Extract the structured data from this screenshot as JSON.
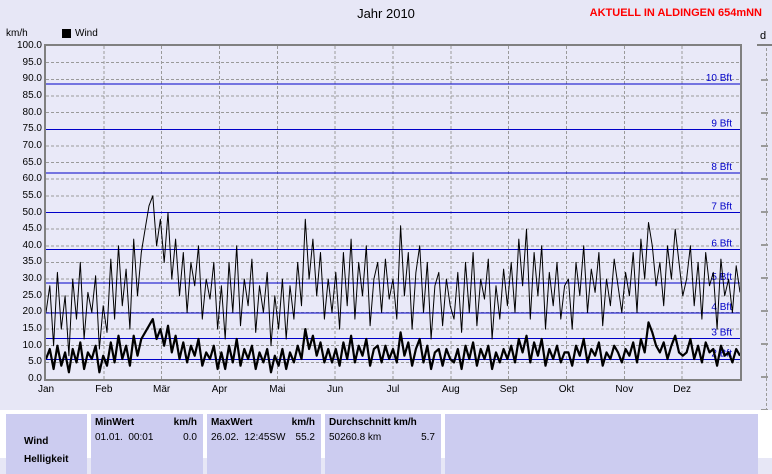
{
  "page": {
    "title": "Jahr 2010",
    "status_right": "AKTUELL IN ALDINGEN 654mNN",
    "status_color": "#ff0000",
    "y_axis_unit": "km/h",
    "legend": [
      {
        "label": "Wind",
        "color": "#000000"
      }
    ],
    "right_fragment_label": "d"
  },
  "chart_data": {
    "type": "line",
    "title": "Jahr 2010",
    "ylabel": "km/h",
    "ylim": [
      0,
      100
    ],
    "ytick_step": 5,
    "grid": true,
    "legend_position": "top-left",
    "x_categories": [
      "Jan",
      "Feb",
      "Mär",
      "Apr",
      "Mai",
      "Jun",
      "Jul",
      "Aug",
      "Sep",
      "Okt",
      "Nov",
      "Dez"
    ],
    "beaufort_lines": [
      {
        "label": "2 Bft",
        "value": 5.8
      },
      {
        "label": "3 Bft",
        "value": 12.2
      },
      {
        "label": "4 Bft",
        "value": 19.8
      },
      {
        "label": "5 Bft",
        "value": 28.8
      },
      {
        "label": "6 Bft",
        "value": 38.9
      },
      {
        "label": "7 Bft",
        "value": 50.0
      },
      {
        "label": "8 Bft",
        "value": 61.9
      },
      {
        "label": "9 Bft",
        "value": 74.9
      },
      {
        "label": "10 Bft",
        "value": 88.6
      }
    ],
    "series": [
      {
        "name": "wind-peak",
        "color": "#000000",
        "stroke_width": 1,
        "values": [
          20,
          28,
          10,
          32,
          15,
          25,
          7,
          30,
          18,
          35,
          12,
          26,
          20,
          31,
          9,
          22,
          14,
          36,
          18,
          40,
          22,
          33,
          15,
          42,
          25,
          38,
          45,
          52,
          55,
          40,
          48,
          35,
          50,
          30,
          42,
          25,
          38,
          20,
          35,
          28,
          40,
          18,
          30,
          24,
          35,
          15,
          28,
          12,
          35,
          20,
          40,
          16,
          30,
          22,
          36,
          14,
          28,
          20,
          32,
          10,
          25,
          15,
          30,
          12,
          28,
          18,
          35,
          22,
          48,
          30,
          42,
          25,
          38,
          18,
          30,
          20,
          32,
          15,
          38,
          22,
          42,
          18,
          35,
          25,
          40,
          16,
          30,
          35,
          20,
          36,
          24,
          30,
          18,
          46,
          25,
          38,
          15,
          32,
          40,
          20,
          35,
          12,
          28,
          32,
          16,
          30,
          22,
          18,
          32,
          14,
          35,
          20,
          38,
          16,
          30,
          24,
          36,
          12,
          28,
          18,
          33,
          22,
          35,
          20,
          42,
          28,
          45,
          18,
          38,
          25,
          40,
          15,
          32,
          22,
          35,
          18,
          28,
          30,
          15,
          35,
          25,
          40,
          20,
          33,
          26,
          38,
          16,
          30,
          22,
          36,
          28,
          20,
          32,
          25,
          38,
          20,
          42,
          30,
          47,
          40,
          28,
          35,
          22,
          40,
          30,
          45,
          35,
          25,
          30,
          40,
          22,
          35,
          18,
          38,
          28,
          32,
          15,
          36,
          25,
          30,
          20,
          34,
          26
        ]
      },
      {
        "name": "wind-average",
        "color": "#000000",
        "stroke_width": 2.2,
        "values": [
          6,
          9,
          3,
          10,
          4,
          8,
          2,
          9,
          5,
          11,
          3,
          8,
          6,
          10,
          2,
          7,
          4,
          11,
          5,
          13,
          6,
          10,
          4,
          13,
          7,
          12,
          14,
          16,
          18,
          12,
          15,
          10,
          16,
          8,
          13,
          6,
          11,
          5,
          10,
          7,
          12,
          4,
          8,
          6,
          10,
          3,
          8,
          3,
          10,
          5,
          12,
          4,
          9,
          6,
          10,
          3,
          8,
          5,
          9,
          2,
          7,
          4,
          9,
          3,
          8,
          5,
          10,
          6,
          15,
          9,
          13,
          7,
          11,
          5,
          9,
          5,
          9,
          4,
          11,
          6,
          13,
          5,
          10,
          7,
          12,
          4,
          9,
          10,
          5,
          10,
          6,
          9,
          5,
          14,
          7,
          11,
          4,
          9,
          12,
          5,
          10,
          3,
          8,
          9,
          4,
          9,
          6,
          5,
          9,
          3,
          10,
          6,
          11,
          4,
          9,
          6,
          10,
          3,
          8,
          5,
          9,
          6,
          10,
          5,
          12,
          8,
          13,
          5,
          11,
          7,
          12,
          4,
          9,
          6,
          10,
          5,
          8,
          8,
          4,
          10,
          7,
          12,
          5,
          9,
          7,
          11,
          4,
          8,
          6,
          10,
          8,
          5,
          9,
          7,
          11,
          5,
          12,
          8,
          17,
          14,
          10,
          8,
          11,
          6,
          10,
          13,
          8,
          7,
          8,
          12,
          6,
          10,
          5,
          11,
          8,
          9,
          4,
          10,
          7,
          8,
          5,
          9,
          7
        ]
      }
    ],
    "colors": {
      "beaufort": "#0000c8",
      "grid": "#9a9a9a",
      "frame": "#808080"
    }
  },
  "stats_table": {
    "row_label": "Wind",
    "next_row_label": "Helligkeit",
    "min_header": "MinWert",
    "min_unit": "km/h",
    "min_datetime": "01.01.  00:01",
    "min_value": "0.0",
    "max_header": "MaxWert",
    "max_unit": "km/h",
    "max_datetime": "26.02.  12:45",
    "max_direction": "SW",
    "max_value": "55.2",
    "avg_header": "Durchschnitt km/h",
    "avg_distance": "50260.8 km",
    "avg_value": "5.7"
  }
}
